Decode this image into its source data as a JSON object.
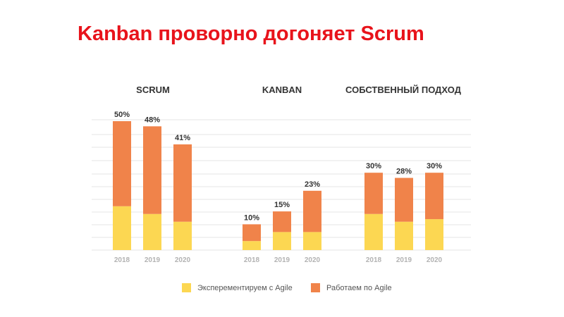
{
  "title": "Kanban проворно догоняет Scrum",
  "colors": {
    "title": "#e8131b",
    "experimenting": "#fcd752",
    "working": "#f0834a",
    "grid": "#e6e6e6",
    "group_title": "#333333",
    "value_label": "#333333",
    "tick_label": "#b3b3b3"
  },
  "chart_data": {
    "type": "bar",
    "stacked": true,
    "ylim": [
      0,
      50
    ],
    "grid": true,
    "legend_position": "bottom",
    "series_names": [
      "Эксперементируем с Agile",
      "Работаем по Agile"
    ],
    "groups": [
      {
        "title": "SCRUM",
        "categories": [
          "2018",
          "2019",
          "2020"
        ],
        "experimenting": [
          17,
          14,
          11
        ],
        "working": [
          33,
          34,
          30
        ],
        "totals": [
          "50%",
          "48%",
          "41%"
        ]
      },
      {
        "title": "KANBAN",
        "categories": [
          "2018",
          "2019",
          "2020"
        ],
        "experimenting": [
          3.5,
          7,
          7
        ],
        "working": [
          6.5,
          8,
          16
        ],
        "totals": [
          "10%",
          "15%",
          "23%"
        ]
      },
      {
        "title": "СОБСТВЕННЫЙ ПОДХОД",
        "categories": [
          "2018",
          "2019",
          "2020"
        ],
        "experimenting": [
          14,
          11,
          12
        ],
        "working": [
          16,
          17,
          18
        ],
        "totals": [
          "30%",
          "28%",
          "30%"
        ]
      }
    ]
  }
}
